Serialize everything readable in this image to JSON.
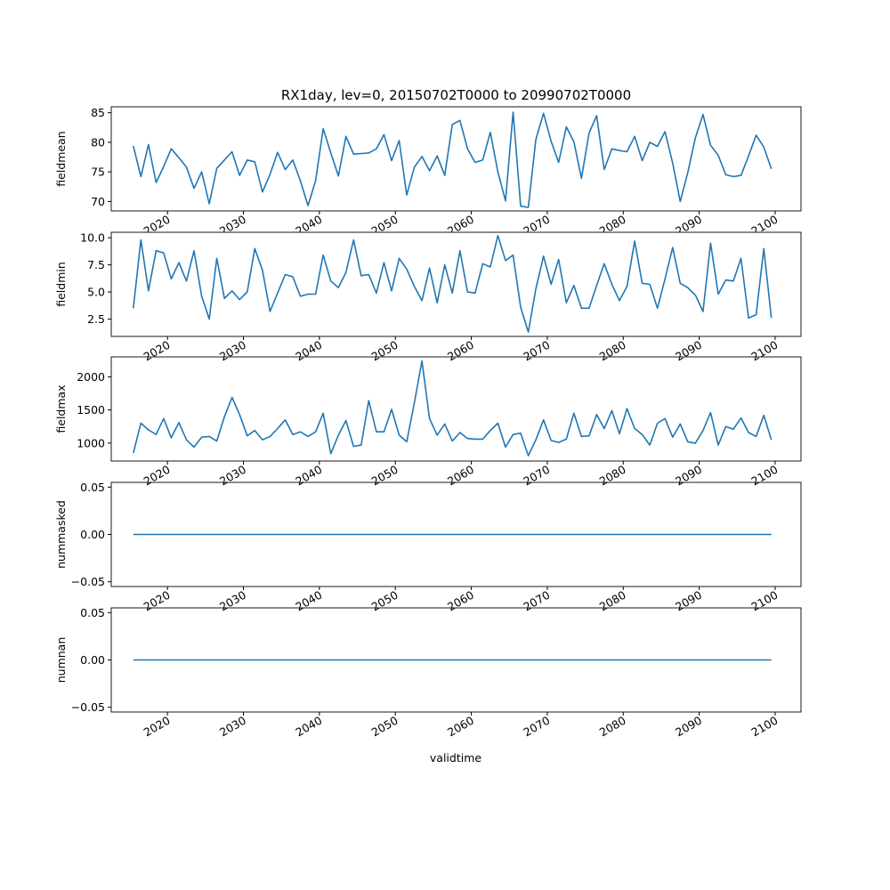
{
  "title": "RX1day, lev=0, 20150702T0000 to 20990702T0000",
  "xlabel": "validtime",
  "colors": {
    "line": "#1f77b4",
    "axes": "#000000",
    "background": "#ffffff"
  },
  "chart_data": {
    "type": "line",
    "title": "RX1day, lev=0, 20150702T0000 to 20990702T0000",
    "xlabel": "validtime",
    "x": {
      "start_year": 2015,
      "end_year": 2099,
      "xlim": [
        2012.6,
        2103.4
      ],
      "ticks": [
        "2020",
        "2030",
        "2040",
        "2050",
        "2060",
        "2070",
        "2080",
        "2090",
        "2100"
      ]
    },
    "grid": false,
    "panels": [
      {
        "ylabel": "fieldmean",
        "ylim": [
          68.4,
          86.0
        ],
        "ticks": [
          "70",
          "75",
          "80",
          "85"
        ],
        "values": [
          79.4,
          74.2,
          79.6,
          73.2,
          75.9,
          78.9,
          77.4,
          75.8,
          72.2,
          75.0,
          69.6,
          75.6,
          77.0,
          78.4,
          74.4,
          77.0,
          76.7,
          71.6,
          74.6,
          78.3,
          75.4,
          77.0,
          73.5,
          69.3,
          73.5,
          82.3,
          78.2,
          74.3,
          81.0,
          78.0,
          78.1,
          78.2,
          78.9,
          81.3,
          76.9,
          80.3,
          71.1,
          75.8,
          77.6,
          75.2,
          77.7,
          74.4,
          83.0,
          83.7,
          78.9,
          76.6,
          77.0,
          81.7,
          75.0,
          70.1,
          85.1,
          69.2,
          69.0,
          80.5,
          84.9,
          80.2,
          76.6,
          82.6,
          80.1,
          73.9,
          81.6,
          84.5,
          75.4,
          78.9,
          78.6,
          78.4,
          81.0,
          76.9,
          80.0,
          79.3,
          81.8,
          76.5,
          70.0,
          74.9,
          80.8,
          84.7,
          79.5,
          77.8,
          74.5,
          74.2,
          74.4,
          77.7,
          81.2,
          79.2,
          75.5
        ]
      },
      {
        "ylabel": "fieldmin",
        "ylim": [
          0.9,
          10.5
        ],
        "ticks": [
          "2.5",
          "5.0",
          "7.5",
          "10.0"
        ],
        "values": [
          3.5,
          9.8,
          5.1,
          8.8,
          8.6,
          6.2,
          7.7,
          6.0,
          8.8,
          4.6,
          2.5,
          8.1,
          4.4,
          5.1,
          4.3,
          5.0,
          9.0,
          7.0,
          3.2,
          4.9,
          6.6,
          6.4,
          4.6,
          4.8,
          4.8,
          8.4,
          6.0,
          5.4,
          6.8,
          9.8,
          6.5,
          6.6,
          4.9,
          7.7,
          5.1,
          8.1,
          7.1,
          5.5,
          4.2,
          7.2,
          4.0,
          7.5,
          4.9,
          8.8,
          5.0,
          4.9,
          7.6,
          7.3,
          10.2,
          7.9,
          8.4,
          3.6,
          1.3,
          5.3,
          8.3,
          5.7,
          8.0,
          4.0,
          5.6,
          3.5,
          3.5,
          5.6,
          7.6,
          5.7,
          4.2,
          5.5,
          9.7,
          5.8,
          5.7,
          3.5,
          6.2,
          9.1,
          5.8,
          5.4,
          4.7,
          3.2,
          9.5,
          4.8,
          6.1,
          6.0,
          8.1,
          2.6,
          2.9,
          9.0,
          2.6
        ]
      },
      {
        "ylabel": "fieldmax",
        "ylim": [
          730,
          2300
        ],
        "ticks": [
          "1000",
          "1500",
          "2000"
        ],
        "values": [
          850,
          1300,
          1200,
          1130,
          1370,
          1080,
          1310,
          1050,
          940,
          1090,
          1100,
          1030,
          1400,
          1690,
          1430,
          1110,
          1190,
          1050,
          1100,
          1220,
          1350,
          1130,
          1170,
          1100,
          1170,
          1450,
          840,
          1120,
          1340,
          950,
          970,
          1640,
          1170,
          1170,
          1510,
          1120,
          1020,
          1610,
          2240,
          1370,
          1120,
          1290,
          1030,
          1160,
          1070,
          1060,
          1060,
          1190,
          1300,
          940,
          1130,
          1150,
          810,
          1050,
          1350,
          1040,
          1010,
          1060,
          1450,
          1100,
          1110,
          1430,
          1220,
          1490,
          1140,
          1520,
          1220,
          1130,
          970,
          1300,
          1370,
          1090,
          1290,
          1020,
          1000,
          1190,
          1460,
          970,
          1250,
          1210,
          1380,
          1160,
          1100,
          1420,
          1050
        ]
      },
      {
        "ylabel": "nummasked",
        "ylim": [
          -0.055,
          0.055
        ],
        "ticks": [
          "−0.05",
          "0.00",
          "0.05"
        ],
        "constant": 0.0
      },
      {
        "ylabel": "numnan",
        "ylim": [
          -0.055,
          0.055
        ],
        "ticks": [
          "−0.05",
          "0.00",
          "0.05"
        ],
        "constant": 0.0
      }
    ]
  }
}
